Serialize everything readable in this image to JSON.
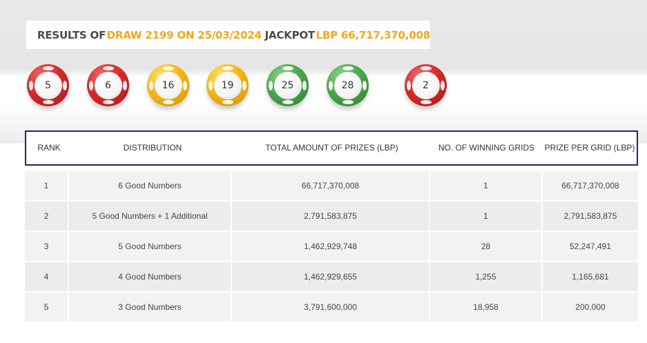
{
  "header": {
    "results_of": "RESULTS OF",
    "draw": "DRAW 2199 ON 25/03/2024",
    "jackpot_label": "JACKPOT",
    "jackpot_value": "LBP 66,717,370,008"
  },
  "balls": [
    {
      "number": "5",
      "color": "red"
    },
    {
      "number": "6",
      "color": "red"
    },
    {
      "number": "16",
      "color": "yellow"
    },
    {
      "number": "19",
      "color": "yellow"
    },
    {
      "number": "25",
      "color": "green"
    },
    {
      "number": "28",
      "color": "green"
    },
    {
      "number": "2",
      "color": "red"
    }
  ],
  "colors": {
    "gold": "#f0a81a",
    "header_border": "#1f2566",
    "ball_red": "#d42a2a",
    "ball_yellow": "#f4b614",
    "ball_green": "#4ca64c"
  },
  "table": {
    "headers": [
      "RANK",
      "DISTRIBUTION",
      "TOTAL AMOUNT OF PRIZES (LBP)",
      "NO. OF WINNING GRIDS",
      "PRIZE PER GRID (LBP)"
    ],
    "rows": [
      [
        "1",
        "6 Good Numbers",
        "66,717,370,008",
        "1",
        "66,717,370,008"
      ],
      [
        "2",
        "5 Good Numbers + 1 Additional",
        "2,791,583,875",
        "1",
        "2,791,583,875"
      ],
      [
        "3",
        "5 Good Numbers",
        "1,462,929,748",
        "28",
        "52,247,491"
      ],
      [
        "4",
        "4 Good Numbers",
        "1,462,929,655",
        "1,255",
        "1,165,681"
      ],
      [
        "5",
        "3 Good Numbers",
        "3,791,600,000",
        "18,958",
        "200,000"
      ]
    ]
  }
}
